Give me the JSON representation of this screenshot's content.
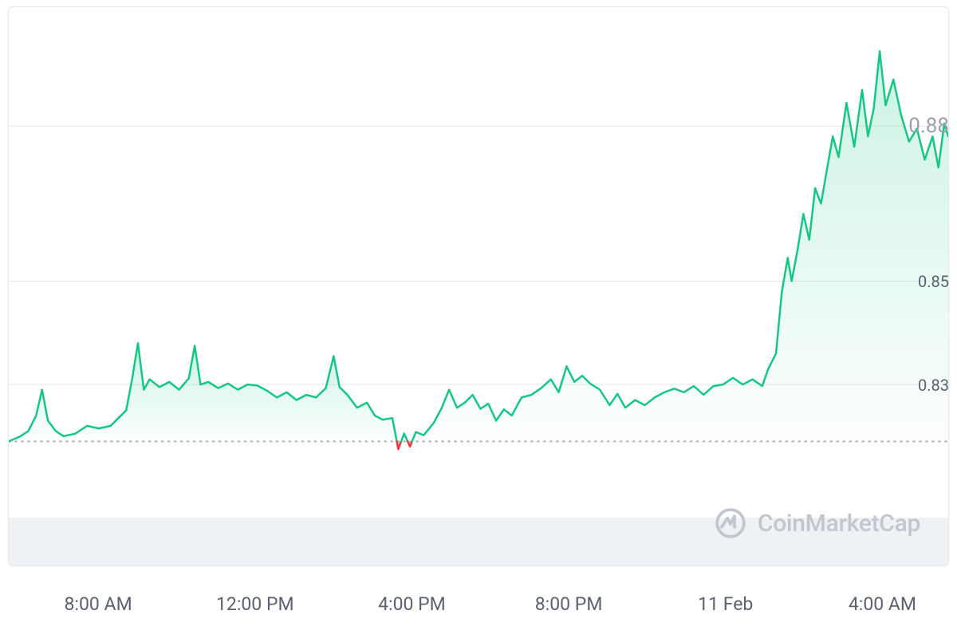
{
  "chart": {
    "type": "area",
    "line_color": "#16c784",
    "line_width": 2.5,
    "area_top_color": "rgba(22,199,132,0.22)",
    "area_bottom_color": "rgba(22,199,132,0.01)",
    "below_color": "#ea3943",
    "below_area_color": "rgba(234,57,67,0.25)",
    "background_color": "#ffffff",
    "border_color": "#e5e7eb",
    "grid_color": "#e5e7eb",
    "dotted_color": "#b0b4bc",
    "baseline": 0.819,
    "ylim_min": 0.795,
    "ylim_max": 0.903,
    "y_ticks": [
      {
        "v": 0.83,
        "label": "0.83"
      },
      {
        "v": 0.85,
        "label": "0.85"
      },
      {
        "v": 0.88,
        "label": "0.88",
        "emph": true
      }
    ],
    "x_ticks": [
      {
        "t": 2.3,
        "label": "8:00 AM"
      },
      {
        "t": 6.3,
        "label": "12:00 PM"
      },
      {
        "t": 10.3,
        "label": "4:00 PM"
      },
      {
        "t": 14.3,
        "label": "8:00 PM"
      },
      {
        "t": 18.3,
        "label": "11 Feb"
      },
      {
        "t": 22.3,
        "label": "4:00 AM"
      }
    ],
    "points": [
      [
        0.0,
        0.819
      ],
      [
        0.3,
        0.82
      ],
      [
        0.5,
        0.821
      ],
      [
        0.7,
        0.824
      ],
      [
        0.85,
        0.829
      ],
      [
        1.0,
        0.823
      ],
      [
        1.2,
        0.821
      ],
      [
        1.4,
        0.82
      ],
      [
        1.7,
        0.8205
      ],
      [
        2.0,
        0.822
      ],
      [
        2.3,
        0.8215
      ],
      [
        2.6,
        0.822
      ],
      [
        3.0,
        0.825
      ],
      [
        3.15,
        0.831
      ],
      [
        3.3,
        0.838
      ],
      [
        3.45,
        0.829
      ],
      [
        3.6,
        0.831
      ],
      [
        3.85,
        0.8295
      ],
      [
        4.1,
        0.8305
      ],
      [
        4.35,
        0.829
      ],
      [
        4.6,
        0.8312
      ],
      [
        4.75,
        0.8375
      ],
      [
        4.9,
        0.83
      ],
      [
        5.1,
        0.8305
      ],
      [
        5.35,
        0.8293
      ],
      [
        5.6,
        0.8302
      ],
      [
        5.85,
        0.829
      ],
      [
        6.1,
        0.83
      ],
      [
        6.35,
        0.8298
      ],
      [
        6.6,
        0.8288
      ],
      [
        6.85,
        0.8275
      ],
      [
        7.1,
        0.8285
      ],
      [
        7.35,
        0.827
      ],
      [
        7.6,
        0.828
      ],
      [
        7.85,
        0.8275
      ],
      [
        8.1,
        0.8293
      ],
      [
        8.3,
        0.8355
      ],
      [
        8.45,
        0.8295
      ],
      [
        8.65,
        0.828
      ],
      [
        8.9,
        0.8255
      ],
      [
        9.15,
        0.8265
      ],
      [
        9.35,
        0.824
      ],
      [
        9.55,
        0.8232
      ],
      [
        9.8,
        0.8235
      ],
      [
        9.95,
        0.8175
      ],
      [
        10.1,
        0.8205
      ],
      [
        10.25,
        0.818
      ],
      [
        10.4,
        0.8208
      ],
      [
        10.6,
        0.8202
      ],
      [
        10.85,
        0.8225
      ],
      [
        11.05,
        0.8253
      ],
      [
        11.25,
        0.829
      ],
      [
        11.45,
        0.8255
      ],
      [
        11.65,
        0.8265
      ],
      [
        11.85,
        0.828
      ],
      [
        12.05,
        0.8253
      ],
      [
        12.25,
        0.8263
      ],
      [
        12.45,
        0.823
      ],
      [
        12.65,
        0.8252
      ],
      [
        12.85,
        0.824
      ],
      [
        13.1,
        0.8275
      ],
      [
        13.35,
        0.828
      ],
      [
        13.6,
        0.8293
      ],
      [
        13.85,
        0.831
      ],
      [
        14.05,
        0.8285
      ],
      [
        14.25,
        0.8335
      ],
      [
        14.45,
        0.8305
      ],
      [
        14.65,
        0.8317
      ],
      [
        14.85,
        0.8302
      ],
      [
        15.1,
        0.829
      ],
      [
        15.35,
        0.826
      ],
      [
        15.55,
        0.8282
      ],
      [
        15.75,
        0.8255
      ],
      [
        16.0,
        0.827
      ],
      [
        16.25,
        0.826
      ],
      [
        16.5,
        0.8275
      ],
      [
        16.75,
        0.8285
      ],
      [
        17.0,
        0.8292
      ],
      [
        17.25,
        0.8285
      ],
      [
        17.5,
        0.8297
      ],
      [
        17.75,
        0.828
      ],
      [
        18.0,
        0.8297
      ],
      [
        18.25,
        0.83
      ],
      [
        18.5,
        0.8313
      ],
      [
        18.75,
        0.83
      ],
      [
        19.0,
        0.831
      ],
      [
        19.25,
        0.8297
      ],
      [
        19.4,
        0.833
      ],
      [
        19.6,
        0.836
      ],
      [
        19.75,
        0.848
      ],
      [
        19.9,
        0.8545
      ],
      [
        20.0,
        0.85
      ],
      [
        20.15,
        0.856
      ],
      [
        20.3,
        0.863
      ],
      [
        20.45,
        0.858
      ],
      [
        20.6,
        0.868
      ],
      [
        20.75,
        0.865
      ],
      [
        20.9,
        0.8715
      ],
      [
        21.05,
        0.878
      ],
      [
        21.2,
        0.874
      ],
      [
        21.4,
        0.8845
      ],
      [
        21.6,
        0.876
      ],
      [
        21.8,
        0.887
      ],
      [
        21.95,
        0.878
      ],
      [
        22.1,
        0.8835
      ],
      [
        22.25,
        0.8945
      ],
      [
        22.4,
        0.884
      ],
      [
        22.6,
        0.889
      ],
      [
        22.8,
        0.882
      ],
      [
        23.0,
        0.877
      ],
      [
        23.2,
        0.8795
      ],
      [
        23.4,
        0.8735
      ],
      [
        23.6,
        0.878
      ],
      [
        23.75,
        0.872
      ],
      [
        23.9,
        0.8805
      ],
      [
        24.0,
        0.878
      ]
    ],
    "volume_bg_color": "#eff2f5"
  },
  "axis": {
    "tick_color": "#5b616e",
    "tick_fontsize": 22
  },
  "watermark": {
    "text": "CoinMarketCap",
    "color": "#c1c7cf",
    "fontsize": 28,
    "icon_color": "#c1c7cf"
  }
}
